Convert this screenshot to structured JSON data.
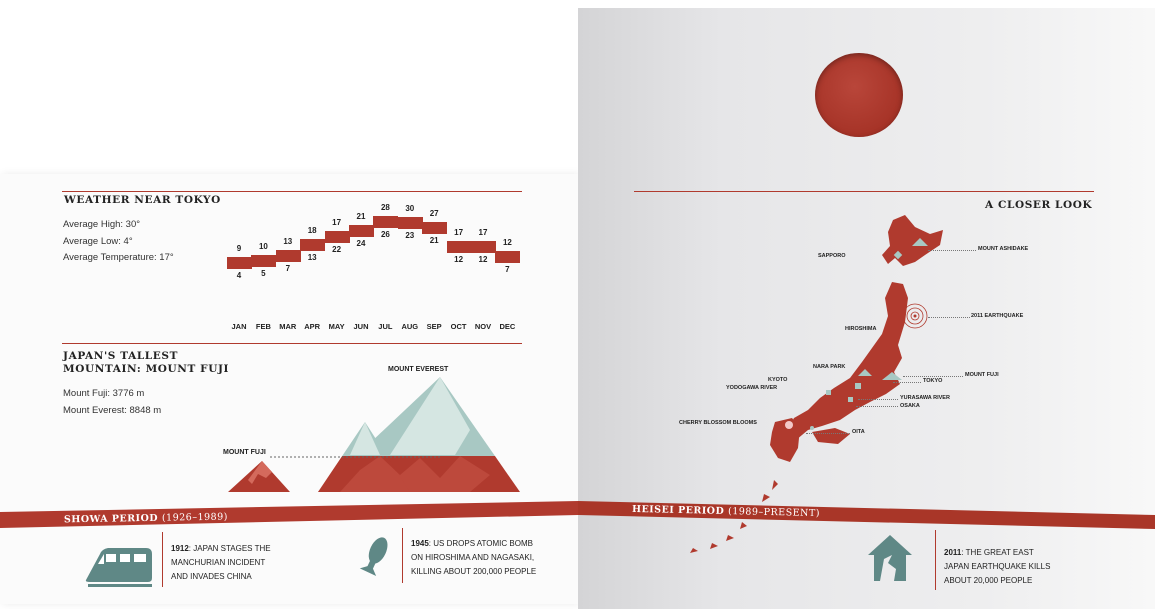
{
  "weather": {
    "title": "Weather near Tokyo",
    "avg_high": "Average High: 30°",
    "avg_low": "Average Low: 4°",
    "avg_temp": "Average Temperature: 17°",
    "color": "#b03a2e",
    "months": [
      "JAN",
      "FEB",
      "MAR",
      "APR",
      "MAY",
      "JUN",
      "JUL",
      "AUG",
      "SEP",
      "OCT",
      "NOV",
      "DEC"
    ],
    "highs": [
      "9",
      "10",
      "13",
      "18",
      "17",
      "21",
      "28",
      "30",
      "27",
      "17",
      "17",
      "12"
    ],
    "lows": [
      "4",
      "5",
      "7",
      "13",
      "22",
      "24",
      "26",
      "23",
      "21",
      "12",
      "12",
      "7"
    ]
  },
  "chart_data": {
    "type": "bar",
    "title": "Weather near Tokyo",
    "categories": [
      "JAN",
      "FEB",
      "MAR",
      "APR",
      "MAY",
      "JUN",
      "JUL",
      "AUG",
      "SEP",
      "OCT",
      "NOV",
      "DEC"
    ],
    "series": [
      {
        "values": [
          9,
          10,
          13,
          18,
          17,
          21,
          28,
          30,
          27,
          17,
          17,
          12
        ]
      },
      {
        "values": [
          4,
          5,
          7,
          13,
          22,
          24,
          26,
          23,
          21,
          12,
          12,
          7
        ]
      }
    ]
  },
  "mountains": {
    "title_line1": "Japan's tallest",
    "title_line2": "mountain: Mount Fuji",
    "fuji_height": "Mount Fuji: 3776 m",
    "everest_height": "Mount Everest: 8848 m",
    "label_everest": "MOUNT EVEREST",
    "label_fuji": "MOUNT FUJI",
    "fuji_m": 3776,
    "everest_m": 8848
  },
  "map": {
    "title": "A closer look",
    "labels": {
      "sapporo": "SAPPORO",
      "mount_ashidake": "MOUNT ASHIDAKE",
      "earthquake": "2011 EARTHQUAKE",
      "hiroshima": "HIROSHIMA",
      "nara_park": "NARA PARK",
      "mount_fuji": "MOUNT FUJI",
      "kyoto": "KYOTO",
      "tokyo": "TOKYO",
      "yodogawa": "YODOGAWA RIVER",
      "yurasawa": "YURASAWA RIVER",
      "osaka": "OSAKA",
      "cherry": "CHERRY BLOSSOM BLOOMS",
      "oita": "OITA"
    }
  },
  "timeline": {
    "showa_label": "SHOWA PERIOD",
    "showa_years": "(1926–1989)",
    "heisei_label": "HEISEI PERIOD",
    "heisei_years": "(1989–PRESENT)",
    "event1_year": "1912",
    "event1_line1": ": JAPAN STAGES THE",
    "event1_line2": "MANCHURIAN INCIDENT",
    "event1_line3": "AND INVADES CHINA",
    "event2_year": "1945",
    "event2_line1": ": US DROPS ATOMIC BOMB",
    "event2_line2": "ON HIROSHIMA AND NAGASAKI,",
    "event2_line3": "KILLING ABOUT 200,000 PEOPLE",
    "event3_year": "2011",
    "event3_line1": ": THE GREAT EAST",
    "event3_line2": "JAPAN EARTHQUAKE KILLS",
    "event3_line3": "ABOUT 20,000 PEOPLE"
  },
  "icons": {
    "train": "train-icon",
    "bomb": "bomb-icon",
    "house": "broken-house-icon",
    "sun": "rising-sun-icon"
  }
}
